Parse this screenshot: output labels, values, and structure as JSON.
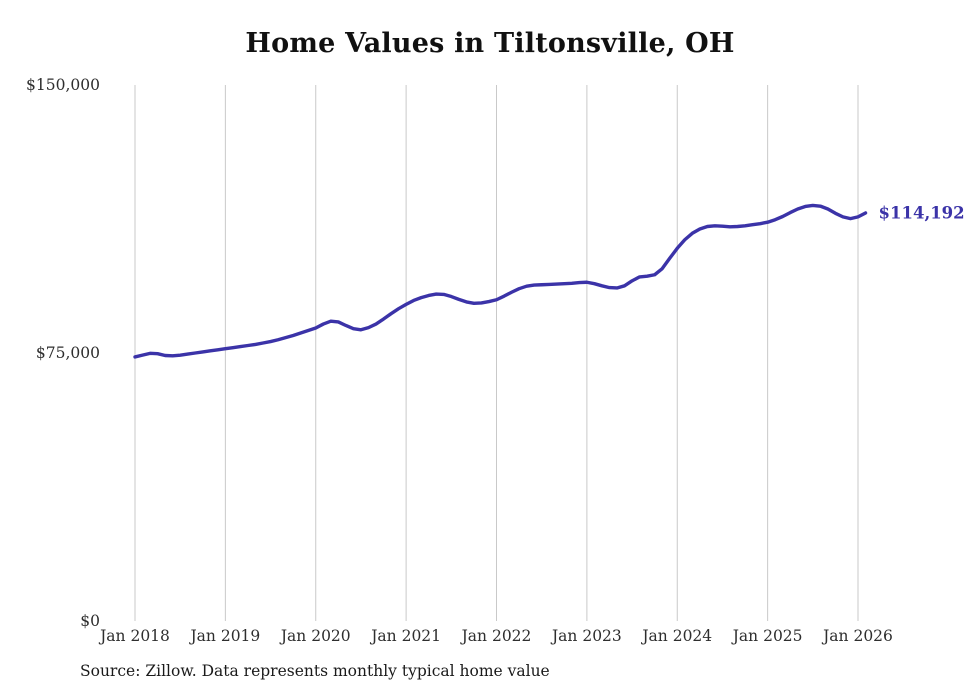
{
  "title": "Home Values in Tiltonsville, OH",
  "end_label": "$114,192",
  "source_note": "Source: Zillow. Data represents monthly typical home value",
  "colors": {
    "line": "#3b33a8",
    "grid": "#c9c9c9",
    "axis_text": "#2e2e2e",
    "title_text": "#111111",
    "end_label": "#3b33a8"
  },
  "chart_data": {
    "type": "line",
    "title": "Home Values in Tiltonsville, OH",
    "xlabel": "",
    "ylabel": "",
    "x_start": "2018-01",
    "x_end": "2026-02",
    "x_interval": "monthly",
    "x_tick_labels": [
      "Jan 2018",
      "Jan 2019",
      "Jan 2020",
      "Jan 2021",
      "Jan 2022",
      "Jan 2023",
      "Jan 2024",
      "Jan 2025",
      "Jan 2026"
    ],
    "y_ticks": [
      0,
      75000,
      150000
    ],
    "y_tick_labels": [
      "$0",
      "$75,000",
      "$150,000"
    ],
    "ylim": [
      0,
      150000
    ],
    "grid": "vertical-only",
    "legend": "none",
    "final_value": 114192,
    "series": [
      {
        "name": "Typical home value",
        "values": [
          73900,
          74400,
          74900,
          74800,
          74300,
          74200,
          74400,
          74700,
          75000,
          75300,
          75600,
          75900,
          76200,
          76500,
          76800,
          77100,
          77400,
          77800,
          78200,
          78700,
          79300,
          79900,
          80600,
          81300,
          82000,
          83100,
          83900,
          83700,
          82700,
          81800,
          81500,
          82100,
          83100,
          84500,
          86000,
          87400,
          88600,
          89700,
          90500,
          91100,
          91500,
          91400,
          90800,
          90000,
          89300,
          88900,
          89000,
          89400,
          89900,
          90900,
          92000,
          93000,
          93700,
          94000,
          94100,
          94200,
          94300,
          94400,
          94500,
          94700,
          94800,
          94400,
          93800,
          93300,
          93200,
          93800,
          95200,
          96300,
          96500,
          96900,
          98600,
          101500,
          104300,
          106700,
          108500,
          109700,
          110400,
          110600,
          110500,
          110300,
          110400,
          110600,
          110900,
          111200,
          111600,
          112300,
          113200,
          114300,
          115300,
          116000,
          116300,
          116100,
          115300,
          114100,
          113100,
          112600,
          113100,
          114192
        ]
      }
    ]
  }
}
